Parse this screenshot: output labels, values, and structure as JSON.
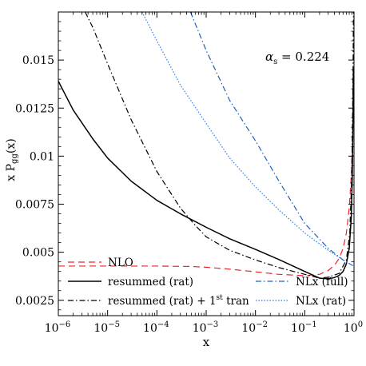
{
  "chart_data": {
    "type": "line",
    "annotation": {
      "symbol": "α",
      "subscript": "s",
      "rest": " = 0.224"
    },
    "xlabel": "x",
    "ylabel": {
      "main": "x P",
      "subscript": "gg",
      "tail": "(x)"
    },
    "xscale": "log",
    "xlim": [
      1e-06,
      1
    ],
    "ylim": [
      0.0017,
      0.0175
    ],
    "x_ticks": [
      {
        "value": 1e-06,
        "base": "10",
        "exp": "−6"
      },
      {
        "value": 1e-05,
        "base": "10",
        "exp": "−5"
      },
      {
        "value": 0.0001,
        "base": "10",
        "exp": "−4"
      },
      {
        "value": 0.001,
        "base": "10",
        "exp": "−3"
      },
      {
        "value": 0.01,
        "base": "10",
        "exp": "−2"
      },
      {
        "value": 0.1,
        "base": "10",
        "exp": "−1"
      },
      {
        "value": 1,
        "base": "10",
        "exp": "0"
      }
    ],
    "y_ticks": [
      {
        "value": 0.0025,
        "label": "0.0025"
      },
      {
        "value": 0.005,
        "label": "0.005"
      },
      {
        "value": 0.0075,
        "label": "0.0075"
      },
      {
        "value": 0.01,
        "label": "0.01"
      },
      {
        "value": 0.0125,
        "label": "0.0125"
      },
      {
        "value": 0.015,
        "label": "0.015"
      }
    ],
    "legend": [
      {
        "series": 0,
        "text": "NLO"
      },
      {
        "series": 1,
        "text": "resummed (rat)"
      },
      {
        "series": 2,
        "text": "resummed (rat) + 1",
        "sup": "st",
        "tail": " tran"
      },
      {
        "series": 3,
        "text": "NLx (full)"
      },
      {
        "series": 4,
        "text": "NLx (rat)"
      }
    ],
    "series": [
      {
        "name": "NLO",
        "color": "#e8262b",
        "dash": "8,5",
        "points": [
          [
            1e-06,
            0.00428
          ],
          [
            1e-05,
            0.00428
          ],
          [
            0.0001,
            0.00428
          ],
          [
            0.0005,
            0.00426
          ],
          [
            0.001,
            0.00422
          ],
          [
            0.003,
            0.00412
          ],
          [
            0.01,
            0.00398
          ],
          [
            0.03,
            0.00385
          ],
          [
            0.1,
            0.00378
          ],
          [
            0.2,
            0.00385
          ],
          [
            0.3,
            0.00405
          ],
          [
            0.4,
            0.00432
          ],
          [
            0.5,
            0.00468
          ],
          [
            0.6,
            0.0052
          ],
          [
            0.7,
            0.006
          ],
          [
            0.8,
            0.0073
          ],
          [
            0.88,
            0.009
          ],
          [
            0.93,
            0.0108
          ],
          [
            0.96,
            0.0125
          ]
        ]
      },
      {
        "name": "resummed (rat)",
        "color": "#000000",
        "dash": "",
        "points": [
          [
            1e-06,
            0.0139
          ],
          [
            2e-06,
            0.0124
          ],
          [
            5e-06,
            0.0109
          ],
          [
            1e-05,
            0.0099
          ],
          [
            3e-05,
            0.0087
          ],
          [
            0.0001,
            0.0077
          ],
          [
            0.0003,
            0.007
          ],
          [
            0.001,
            0.0063
          ],
          [
            0.003,
            0.0057
          ],
          [
            0.01,
            0.00515
          ],
          [
            0.03,
            0.00462
          ],
          [
            0.1,
            0.004
          ],
          [
            0.2,
            0.00365
          ],
          [
            0.3,
            0.00362
          ],
          [
            0.4,
            0.00368
          ],
          [
            0.5,
            0.0038
          ],
          [
            0.6,
            0.004
          ],
          [
            0.7,
            0.0044
          ],
          [
            0.8,
            0.0052
          ],
          [
            0.88,
            0.0068
          ],
          [
            0.92,
            0.0088
          ],
          [
            0.95,
            0.0115
          ],
          [
            0.97,
            0.0145
          ]
        ]
      },
      {
        "name": "resummed (rat) + 1st tran",
        "color": "#000000",
        "dash": "7,3,1.5,3",
        "points": [
          [
            3.5e-06,
            0.0175
          ],
          [
            5e-06,
            0.0167
          ],
          [
            1e-05,
            0.0148
          ],
          [
            3e-05,
            0.0119
          ],
          [
            0.0001,
            0.0092
          ],
          [
            0.0003,
            0.0073
          ],
          [
            0.0006,
            0.0064
          ],
          [
            0.001,
            0.0058
          ],
          [
            0.003,
            0.0051
          ],
          [
            0.01,
            0.0046
          ],
          [
            0.03,
            0.0042
          ],
          [
            0.1,
            0.00385
          ],
          [
            0.2,
            0.00365
          ],
          [
            0.3,
            0.0037
          ],
          [
            0.5,
            0.0039
          ],
          [
            0.7,
            0.0046
          ],
          [
            0.82,
            0.006
          ],
          [
            0.9,
            0.009
          ],
          [
            0.95,
            0.0135
          ],
          [
            0.975,
            0.0175
          ]
        ]
      },
      {
        "name": "NLx (full)",
        "color": "#1f5fbf",
        "dash": "7,3,1.5,3",
        "points": [
          [
            0.00048,
            0.0175
          ],
          [
            0.001,
            0.0155
          ],
          [
            0.003,
            0.0129
          ],
          [
            0.01,
            0.0108
          ],
          [
            0.03,
            0.0087
          ],
          [
            0.1,
            0.0065
          ],
          [
            0.3,
            0.0052
          ],
          [
            0.6,
            0.0046
          ],
          [
            0.95,
            0.0043
          ]
        ]
      },
      {
        "name": "NLx (rat)",
        "color": "#2f7fe0",
        "dash": "1.5,2",
        "points": [
          [
            5e-05,
            0.0175
          ],
          [
            0.0001,
            0.016
          ],
          [
            0.0003,
            0.0137
          ],
          [
            0.001,
            0.0117
          ],
          [
            0.003,
            0.0099
          ],
          [
            0.01,
            0.0084
          ],
          [
            0.03,
            0.0072
          ],
          [
            0.1,
            0.006
          ],
          [
            0.3,
            0.0051
          ],
          [
            0.6,
            0.0046
          ],
          [
            0.95,
            0.0043
          ]
        ]
      }
    ]
  }
}
